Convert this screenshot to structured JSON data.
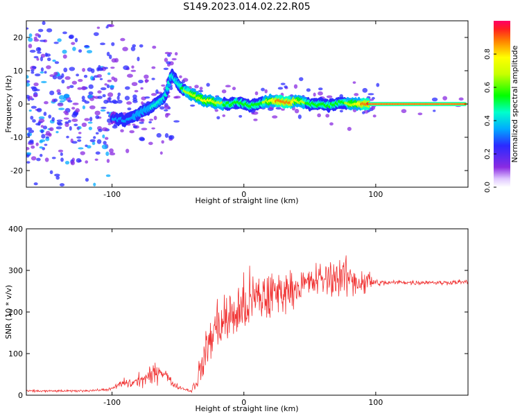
{
  "title": "S149.2023.014.02.22.R05",
  "chart_data": [
    {
      "type": "heatmap",
      "xlabel": "Height of straight line (km)",
      "ylabel": "Frequency (Hz)",
      "xlim": [
        -165,
        170
      ],
      "ylim": [
        -25,
        25
      ],
      "x_ticks": [
        -100,
        0,
        100
      ],
      "y_ticks": [
        -20,
        -10,
        0,
        10,
        20
      ],
      "grid": false,
      "colorbar": {
        "label": "Normalized spectral amplitude",
        "ticks": [
          0.0,
          0.2,
          0.4,
          0.6,
          0.8
        ],
        "range": [
          0,
          1
        ]
      },
      "ridge": {
        "x": [
          -100,
          -90,
          -80,
          -70,
          -60,
          -55,
          -50,
          -45,
          -40,
          -35,
          -30,
          -25,
          -20,
          -15,
          -10,
          -5,
          0,
          5,
          10,
          15,
          20,
          25,
          30,
          35,
          40,
          45,
          50,
          55,
          60,
          65,
          70,
          75,
          80,
          85,
          90,
          95,
          100,
          110,
          120,
          130,
          140,
          150,
          160,
          168
        ],
        "y": [
          -4,
          -5,
          -3,
          -1,
          2,
          9,
          6,
          4,
          3,
          2,
          1,
          1,
          0.5,
          0,
          0,
          0.5,
          0,
          -0.5,
          0,
          0.5,
          1,
          1,
          0.5,
          0.5,
          1,
          0.5,
          0,
          0,
          0,
          -0.5,
          0,
          0.5,
          0,
          0,
          0,
          0,
          0,
          0,
          0,
          0,
          0,
          0,
          0,
          0
        ],
        "amplitude": [
          0.25,
          0.3,
          0.35,
          0.35,
          0.4,
          0.45,
          0.4,
          0.55,
          0.6,
          0.65,
          0.7,
          0.7,
          0.6,
          0.55,
          0.5,
          0.55,
          0.5,
          0.5,
          0.55,
          0.55,
          0.7,
          0.8,
          0.85,
          0.8,
          0.7,
          0.6,
          0.5,
          0.5,
          0.5,
          0.5,
          0.5,
          0.5,
          0.6,
          0.7,
          0.8,
          0.9,
          0.95,
          0.95,
          0.95,
          0.95,
          0.95,
          0.95,
          0.95,
          0.95
        ]
      }
    },
    {
      "type": "line",
      "xlabel": "Height of straight line (km)",
      "ylabel": "SNR (10 * v/v)",
      "xlim": [
        -165,
        170
      ],
      "ylim": [
        0,
        400
      ],
      "x_ticks": [
        -100,
        0,
        100
      ],
      "y_ticks": [
        0,
        100,
        200,
        300,
        400
      ],
      "grid": false,
      "series": [
        {
          "color": "#f03030",
          "x": [
            -165,
            -150,
            -130,
            -110,
            -100,
            -95,
            -90,
            -85,
            -80,
            -75,
            -70,
            -65,
            -60,
            -55,
            -50,
            -45,
            -40,
            -35,
            -30,
            -25,
            -20,
            -15,
            -10,
            -5,
            0,
            5,
            10,
            15,
            20,
            25,
            30,
            35,
            40,
            45,
            50,
            55,
            60,
            65,
            70,
            75,
            80,
            85,
            90,
            95,
            100,
            110,
            120,
            130,
            140,
            150,
            160,
            170
          ],
          "values": [
            10,
            10,
            10,
            12,
            15,
            25,
            30,
            28,
            35,
            40,
            45,
            60,
            55,
            30,
            20,
            15,
            10,
            40,
            90,
            140,
            170,
            180,
            185,
            200,
            210,
            225,
            230,
            235,
            240,
            245,
            250,
            255,
            260,
            265,
            270,
            275,
            280,
            280,
            285,
            285,
            280,
            275,
            272,
            275,
            270,
            270,
            272,
            270,
            272,
            270,
            272,
            272
          ],
          "spread": [
            4,
            4,
            4,
            4,
            6,
            12,
            18,
            20,
            25,
            28,
            35,
            40,
            25,
            12,
            8,
            6,
            6,
            40,
            70,
            90,
            100,
            100,
            100,
            110,
            110,
            110,
            110,
            100,
            100,
            90,
            70,
            60,
            60,
            55,
            55,
            60,
            65,
            70,
            70,
            70,
            65,
            60,
            50,
            40,
            15,
            8,
            8,
            8,
            8,
            8,
            8,
            8
          ]
        }
      ]
    }
  ]
}
